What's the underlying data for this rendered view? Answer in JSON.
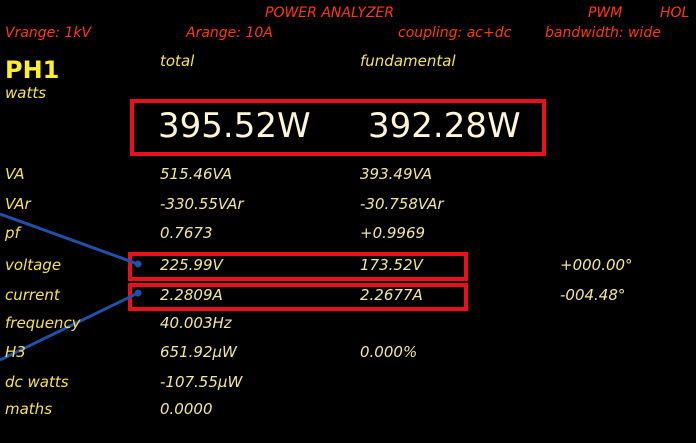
{
  "header": {
    "title": "POWER ANALYZER",
    "mode": "PWM",
    "hold": "HOL",
    "vrange": "Vrange: 1kV",
    "arange": "Arange: 10A",
    "coupling": "coupling: ac+dc",
    "bandwidth": "bandwidth: wide"
  },
  "phase": "PH1",
  "columns": [
    "total",
    "fundamental"
  ],
  "rows": [
    {
      "label": "watts",
      "total": "395.52W",
      "fundamental": "392.28W"
    },
    {
      "label": "VA",
      "total": "515.46VA",
      "fundamental": "393.49VA"
    },
    {
      "label": "VAr",
      "total": "-330.55VAr",
      "fundamental": "-30.758VAr"
    },
    {
      "label": "pf",
      "total": "0.7673",
      "fundamental": "+0.9969"
    },
    {
      "label": "voltage",
      "total": "225.99V",
      "fundamental": "173.52V",
      "angle": "+000.00°"
    },
    {
      "label": "current",
      "total": "2.2809A",
      "fundamental": "2.2677A",
      "angle": "-004.48°"
    },
    {
      "label": "frequency",
      "total": "40.003Hz"
    },
    {
      "label": "H3",
      "total": "651.92µW",
      "fundamental": "0.000%"
    },
    {
      "label": "dc watts",
      "total": "-107.55µW"
    },
    {
      "label": "maths",
      "total": "0.0000"
    }
  ]
}
